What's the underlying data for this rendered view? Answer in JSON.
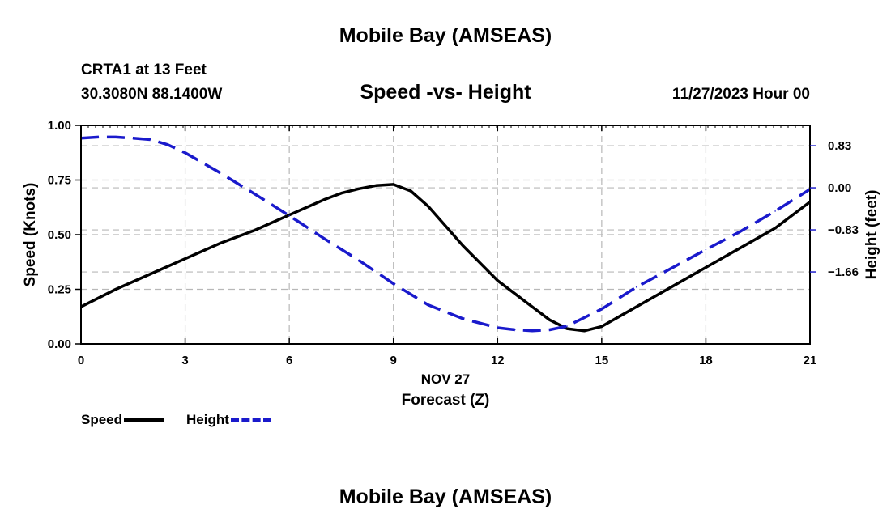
{
  "header": {
    "title": "Mobile Bay (AMSEAS)",
    "station": "CRTA1 at 13 Feet",
    "coords": "30.3080N  88.1400W",
    "subtitle": "Speed -vs- Height",
    "datetime": "11/27/2023 Hour 00"
  },
  "footer": {
    "title": "Mobile Bay (AMSEAS)"
  },
  "legend": {
    "speed": "Speed",
    "height": "Height"
  },
  "colors": {
    "speed": "#000000",
    "height": "#1a1acc",
    "grid": "#b8b8b8"
  },
  "chart_data": {
    "type": "line",
    "title": "Speed -vs- Height",
    "xlabel": "Forecast (Z)",
    "xlabel_date": "NOV 27",
    "ylabel_left": "Speed (Knots)",
    "ylabel_right": "Height (feet)",
    "xlim": [
      0,
      21
    ],
    "ylim_left": [
      0,
      1.0
    ],
    "ylim_right": [
      -3.08,
      1.23
    ],
    "x_ticks": [
      0,
      3,
      6,
      9,
      12,
      15,
      18,
      21
    ],
    "x_tick_labels": [
      "0",
      "3",
      "6",
      "9",
      "12",
      "15",
      "18",
      "21"
    ],
    "y_left_ticks": [
      0,
      0.25,
      0.5,
      0.75,
      1.0
    ],
    "y_left_tick_labels": [
      "0.00",
      "0.25",
      "0.50",
      "0.75",
      "1.00"
    ],
    "y_right_ticks": [
      0.83,
      0,
      -0.83,
      -1.66
    ],
    "y_right_tick_labels": [
      "0.83",
      "0.00",
      "−0.83",
      "−1.66"
    ],
    "grid": true,
    "legend_position": "bottom-left",
    "series": [
      {
        "name": "Speed",
        "axis": "left",
        "style": "solid",
        "x": [
          0,
          1,
          2,
          3,
          4,
          5,
          6,
          7,
          7.5,
          8,
          8.5,
          9,
          9.5,
          10,
          11,
          12,
          13,
          13.5,
          14,
          14.5,
          15,
          16,
          17,
          18,
          19,
          20,
          21
        ],
        "values": [
          0.17,
          0.25,
          0.32,
          0.39,
          0.46,
          0.52,
          0.59,
          0.66,
          0.69,
          0.71,
          0.725,
          0.73,
          0.7,
          0.63,
          0.45,
          0.29,
          0.17,
          0.11,
          0.07,
          0.06,
          0.08,
          0.17,
          0.26,
          0.35,
          0.44,
          0.53,
          0.65
        ]
      },
      {
        "name": "Height",
        "axis": "right",
        "style": "dashed",
        "x": [
          0,
          0.5,
          1,
          1.5,
          2,
          2.5,
          3,
          4,
          5,
          6,
          7,
          8,
          9,
          10,
          11,
          12,
          12.5,
          13,
          13.5,
          14,
          15,
          16,
          17,
          18,
          19,
          20,
          21
        ],
        "values": [
          0.98,
          1.0,
          1.0,
          0.98,
          0.95,
          0.85,
          0.69,
          0.3,
          -0.12,
          -0.55,
          -1.0,
          -1.43,
          -1.89,
          -2.31,
          -2.58,
          -2.76,
          -2.8,
          -2.82,
          -2.8,
          -2.73,
          -2.39,
          -1.96,
          -1.59,
          -1.22,
          -0.86,
          -0.46,
          -0.03
        ]
      }
    ]
  }
}
